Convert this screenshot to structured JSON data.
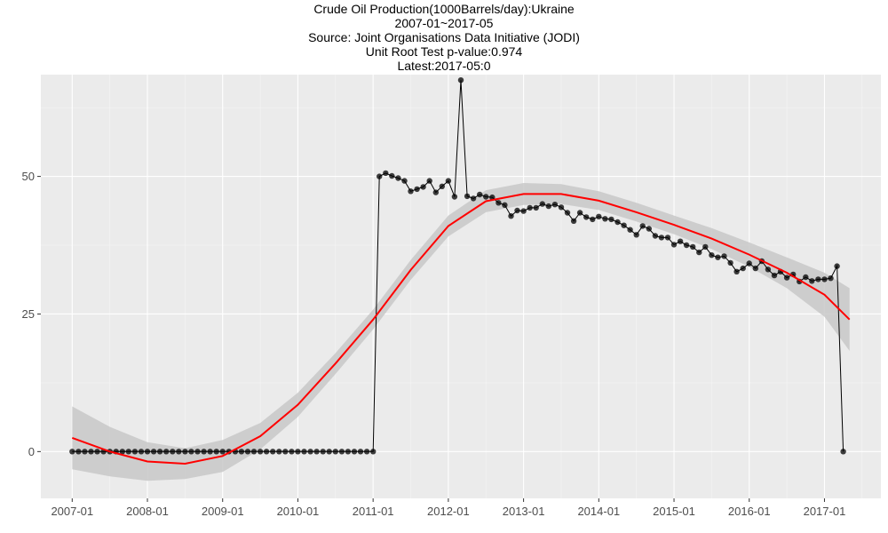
{
  "header": {
    "title": "Crude Oil Production(1000Barrels/day):Ukraine",
    "period": "2007-01~2017-05",
    "source": "Source: Joint Organisations Data Initiative (JODI)",
    "unit_root": "Unit Root Test p-value:0.974",
    "latest": "Latest:2017-05:0"
  },
  "colors": {
    "panel": "#ebebeb",
    "grid_major": "#ffffff",
    "grid_minor": "#f5f5f5",
    "points": "#000000",
    "series_line": "#000000",
    "trend": "#ff0000",
    "ribbon": "#c8c8c8"
  },
  "chart_data": {
    "type": "line",
    "title": "Crude Oil Production(1000Barrels/day):Ukraine",
    "xlabel": "",
    "ylabel": "",
    "x_start": "2007-01",
    "x_end": "2017-05",
    "xlim": [
      "2006-08",
      "2017-10"
    ],
    "ylim": [
      -8.5,
      68.5
    ],
    "x_ticks": [
      "2007-01",
      "2008-01",
      "2009-01",
      "2010-01",
      "2011-01",
      "2012-01",
      "2013-01",
      "2014-01",
      "2015-01",
      "2016-01",
      "2017-01"
    ],
    "y_ticks": [
      0,
      25,
      50
    ],
    "grid": true,
    "series": [
      {
        "name": "",
        "values": [
          0,
          0,
          0,
          0,
          0,
          0,
          0,
          0,
          0,
          0,
          0,
          0,
          0,
          0,
          0,
          0,
          0,
          0,
          0,
          0,
          0,
          0,
          0,
          0,
          0,
          0,
          0,
          0,
          0,
          0,
          0,
          0,
          0,
          0,
          0,
          0,
          0,
          0,
          0,
          0,
          0,
          0,
          0,
          0,
          0,
          0,
          0,
          0,
          0,
          50,
          50.6,
          50.1,
          49.7,
          49.2,
          47.3,
          47.7,
          48.1,
          49.2,
          47.1,
          48.2,
          49.2,
          46.3,
          67.5,
          46.4,
          46,
          46.7,
          46.3,
          46.2,
          45.2,
          44.8,
          42.8,
          43.8,
          43.7,
          44.3,
          44.3,
          45,
          44.6,
          44.9,
          44.4,
          43.4,
          41.9,
          43.4,
          42.6,
          42.2,
          42.7,
          42.3,
          42.2,
          41.7,
          41.1,
          40.3,
          39.4,
          41,
          40.5,
          39.2,
          38.9,
          38.9,
          37.6,
          38.2,
          37.5,
          37.2,
          36.2,
          37.2,
          35.7,
          35.3,
          35.5,
          34.3,
          32.7,
          33.3,
          34.2,
          33.3,
          34.6,
          33.1,
          32,
          32.7,
          31.6,
          32.2,
          30.9,
          31.7,
          31,
          31.3,
          31.3,
          31.5,
          33.7,
          0
        ]
      }
    ],
    "trend": {
      "x": [
        "2007-01",
        "2007-07",
        "2008-01",
        "2008-07",
        "2009-01",
        "2009-07",
        "2010-01",
        "2010-07",
        "2011-01",
        "2011-07",
        "2012-01",
        "2012-07",
        "2013-01",
        "2013-07",
        "2014-01",
        "2014-07",
        "2015-01",
        "2015-07",
        "2016-01",
        "2016-07",
        "2017-01",
        "2017-05"
      ],
      "y": [
        2.5,
        0,
        -1.8,
        -2.2,
        -0.8,
        2.8,
        8.5,
        16,
        24,
        33,
        41,
        45.5,
        46.8,
        46.8,
        45.6,
        43.5,
        41.2,
        38.7,
        35.8,
        32.5,
        28.5,
        24
      ],
      "lower": [
        -3.2,
        -4.5,
        -5.3,
        -5,
        -3.7,
        0.4,
        6.3,
        14.1,
        22.2,
        31.2,
        39.1,
        43.5,
        44.8,
        45,
        43.9,
        41.8,
        39.5,
        36.8,
        33.6,
        29.7,
        24.5,
        18.3
      ],
      "upper": [
        8.2,
        4.5,
        1.7,
        0.6,
        2.1,
        5.2,
        10.7,
        17.9,
        25.8,
        34.8,
        42.9,
        47.5,
        48.8,
        48.6,
        47.3,
        45.2,
        42.9,
        40.6,
        38,
        35.3,
        32.5,
        29.7
      ]
    }
  }
}
